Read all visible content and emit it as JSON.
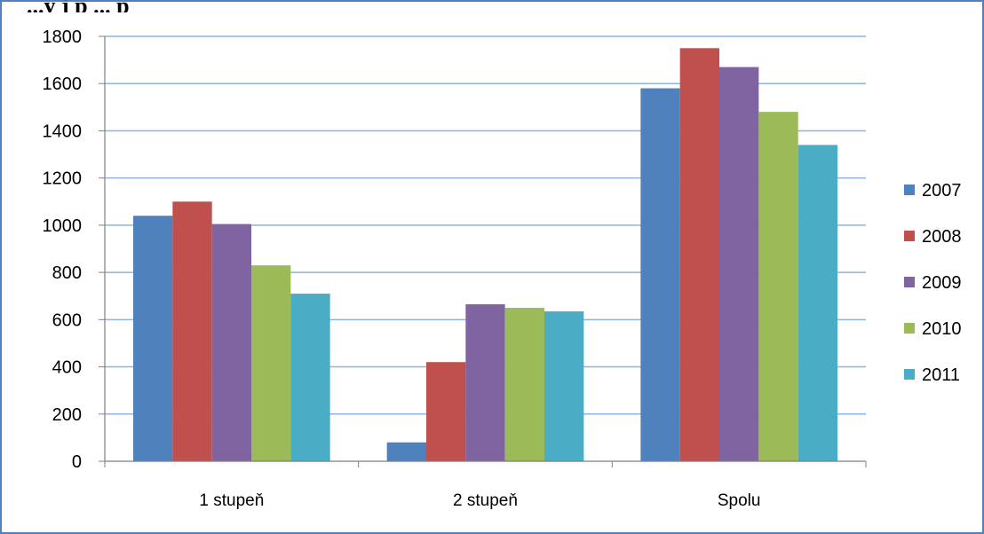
{
  "chart_data": {
    "type": "bar",
    "title": "",
    "cut_title": "...y j p ... p",
    "xlabel": "",
    "ylabel": "",
    "categories": [
      "1 stupeň",
      "2 stupeň",
      "Spolu"
    ],
    "series": [
      {
        "name": "2007",
        "values": [
          1040,
          80,
          1580
        ],
        "color": "#4f81bd"
      },
      {
        "name": "2008",
        "values": [
          1100,
          420,
          1750
        ],
        "color": "#c0504d"
      },
      {
        "name": "2009",
        "values": [
          1005,
          665,
          1670
        ],
        "color": "#8064a2"
      },
      {
        "name": "2010",
        "values": [
          830,
          650,
          1480
        ],
        "color": "#9bbb59"
      },
      {
        "name": "2011",
        "values": [
          710,
          635,
          1340
        ],
        "color": "#4bacc6"
      }
    ],
    "ylim": [
      0,
      1800
    ],
    "yticks": [
      0,
      200,
      400,
      600,
      800,
      1000,
      1200,
      1400,
      1600,
      1800
    ],
    "grid": true,
    "legend_position": "right"
  }
}
